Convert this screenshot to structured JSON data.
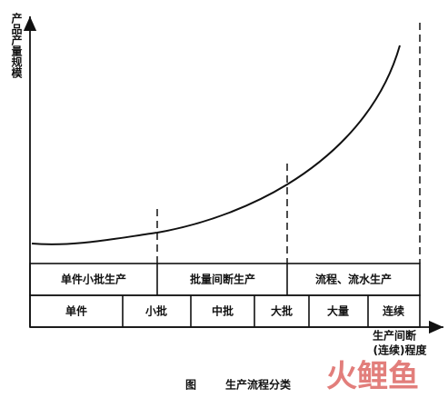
{
  "axes": {
    "y_label": "产品产量规模",
    "x_label_1": "生产间断",
    "x_label_2": "(连续)程度"
  },
  "stages": [
    "单件小批生产",
    "批量间断生产",
    "流程、流水生产"
  ],
  "batches": [
    "单件",
    "小批",
    "中批",
    "大批",
    "大量",
    "连续"
  ],
  "caption": {
    "label": "图",
    "title": "生产流程分类"
  },
  "watermark": "火鲤鱼"
}
